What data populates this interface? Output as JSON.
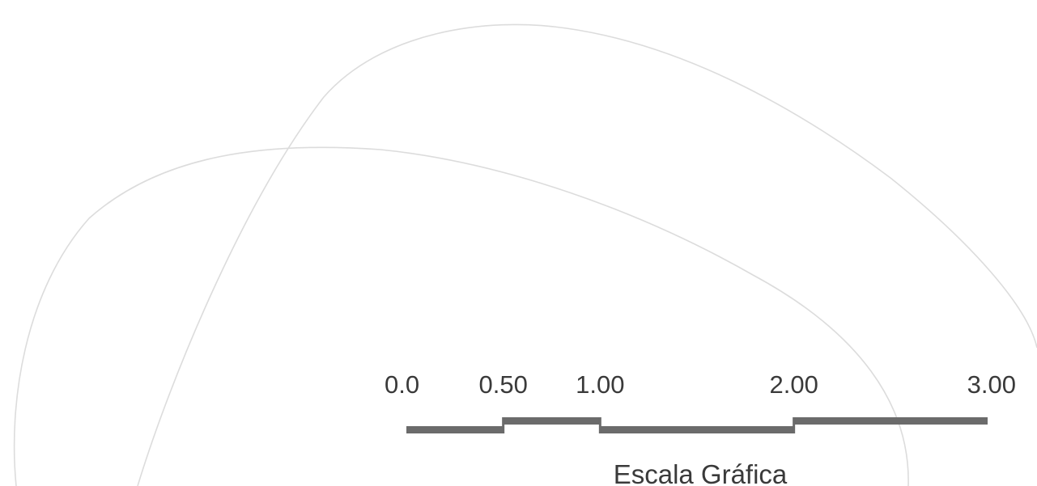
{
  "scale_bar": {
    "ticks": [
      {
        "value": 0.0,
        "label": "0.0"
      },
      {
        "value": 0.5,
        "label": "0.50"
      },
      {
        "value": 1.0,
        "label": "1.00"
      },
      {
        "value": 2.0,
        "label": "2.00"
      },
      {
        "value": 3.0,
        "label": "3.00"
      }
    ],
    "segments": [
      {
        "from": 0.0,
        "to": 0.5,
        "level": "low"
      },
      {
        "from": 0.5,
        "to": 1.0,
        "level": "high"
      },
      {
        "from": 1.0,
        "to": 2.0,
        "level": "low"
      },
      {
        "from": 2.0,
        "to": 3.0,
        "level": "high"
      }
    ],
    "title": "Escala Gráfica",
    "bar_color": "#6b6b6b"
  },
  "outline_color": "#dcdcdc"
}
